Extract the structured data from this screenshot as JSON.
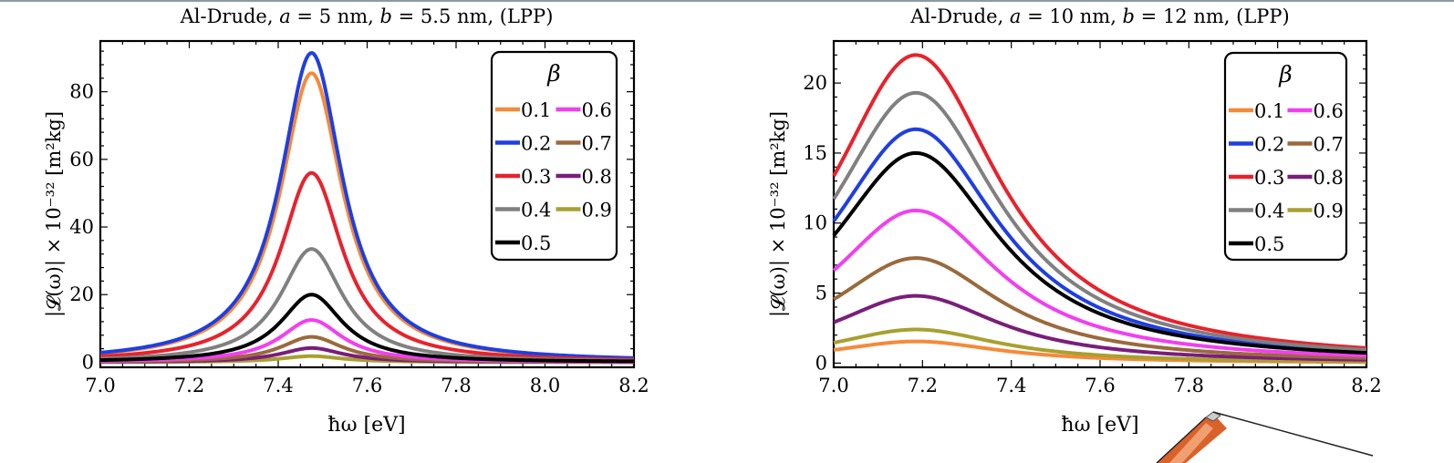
{
  "chart_data": [
    {
      "type": "line",
      "title": "Al-Drude, a = 5 nm, b = 5.5 nm, (LPP)",
      "title_parts": [
        "Al-Drude, ",
        "a",
        " = 5 nm, ",
        "b",
        " = 5.5 nm, (LPP)"
      ],
      "xlabel": "ħω [eV]",
      "ylabel": "|𝓛(ω)| × 10⁻³² [m²kg]",
      "xlim": [
        7.0,
        8.2
      ],
      "ylim": [
        -1.5,
        95
      ],
      "x_ticks": [
        "7.0",
        "7.2",
        "7.4",
        "7.6",
        "7.8",
        "8.0",
        "8.2"
      ],
      "y_ticks": [
        "0",
        "20",
        "40",
        "60",
        "80"
      ],
      "legend_title": "β",
      "legend_position": "top-right",
      "peak_x": 7.475,
      "half_width": 0.085,
      "series": [
        {
          "name": "0.1",
          "color": "#f58a3a",
          "peak": 85.5
        },
        {
          "name": "0.2",
          "color": "#1f3fe0",
          "peak": 91.5
        },
        {
          "name": "0.3",
          "color": "#e8222c",
          "peak": 56.0
        },
        {
          "name": "0.4",
          "color": "#808080",
          "peak": 33.5
        },
        {
          "name": "0.5",
          "color": "#000000",
          "peak": 20.0
        },
        {
          "name": "0.6",
          "color": "#f23ff0",
          "peak": 12.5
        },
        {
          "name": "0.7",
          "color": "#9a6a3c",
          "peak": 7.5
        },
        {
          "name": "0.8",
          "color": "#7a1e7a",
          "peak": 4.2
        },
        {
          "name": "0.9",
          "color": "#a8a030",
          "peak": 1.8
        }
      ]
    },
    {
      "type": "line",
      "title": "Al-Drude, a = 10 nm, b = 12 nm, (LPP)",
      "title_parts": [
        "Al-Drude, ",
        "a",
        " = 10 nm, ",
        "b",
        " = 12 nm, (LPP)"
      ],
      "xlabel": "ħω [eV]",
      "ylabel": "|𝓛(ω)| × 10⁻³² [m²kg]",
      "xlim": [
        7.0,
        8.2
      ],
      "ylim": [
        -0.3,
        23
      ],
      "x_ticks": [
        "7.0",
        "7.2",
        "7.4",
        "7.6",
        "7.8",
        "8.0",
        "8.2"
      ],
      "y_ticks": [
        "0",
        "5",
        "10",
        "15",
        "20"
      ],
      "legend_title": "β",
      "legend_position": "top-right",
      "peak_x": 7.185,
      "half_width": 0.23,
      "series": [
        {
          "name": "0.1",
          "color": "#f58a3a",
          "peak": 1.55
        },
        {
          "name": "0.2",
          "color": "#1f3fe0",
          "peak": 16.7
        },
        {
          "name": "0.3",
          "color": "#e8222c",
          "peak": 22.0
        },
        {
          "name": "0.4",
          "color": "#808080",
          "peak": 19.3
        },
        {
          "name": "0.5",
          "color": "#000000",
          "peak": 15.0
        },
        {
          "name": "0.6",
          "color": "#f23ff0",
          "peak": 10.9
        },
        {
          "name": "0.7",
          "color": "#9a6a3c",
          "peak": 7.5
        },
        {
          "name": "0.8",
          "color": "#7a1e7a",
          "peak": 4.8
        },
        {
          "name": "0.9",
          "color": "#a8a030",
          "peak": 2.4
        }
      ]
    }
  ]
}
